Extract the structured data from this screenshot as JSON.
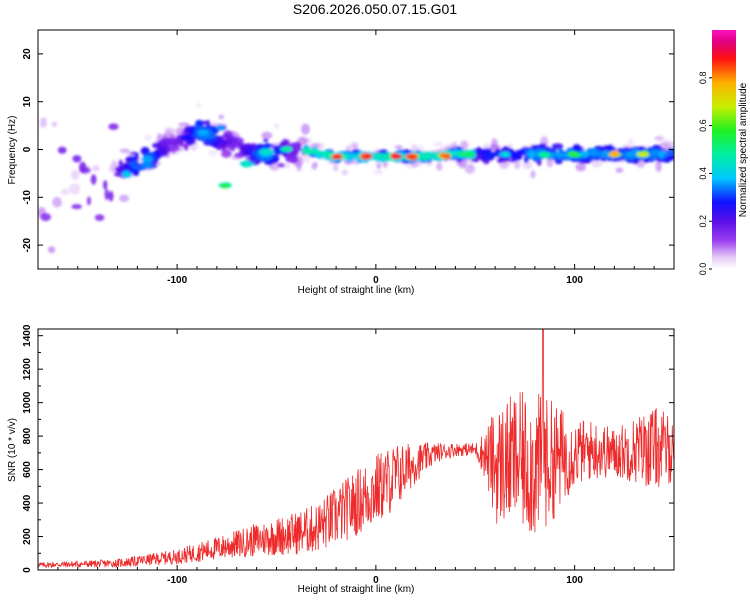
{
  "page_title": "S206.2026.050.07.15.G01",
  "colors": {
    "snr_line": "#ee2a2a",
    "colormap": [
      "#ffffff",
      "#e4c8f6",
      "#9a3df0",
      "#5a10e8",
      "#1010ff",
      "#00c8ff",
      "#00f0a0",
      "#20f020",
      "#c8f000",
      "#ffb000",
      "#ff1010",
      "#e00080",
      "#ff10c0"
    ]
  },
  "chart_data": [
    {
      "type": "heatmap",
      "title": "",
      "xlabel": "Height of straight line (km)",
      "ylabel": "Frequency (Hz)",
      "xlim": [
        -170,
        150
      ],
      "ylim": [
        -25,
        25
      ],
      "xticks": [
        -100,
        0,
        100
      ],
      "xtick_labels": [
        "-100",
        "0",
        "100"
      ],
      "yticks": [
        -20,
        -10,
        0,
        10,
        20
      ],
      "ytick_labels": [
        "-20",
        "-10",
        "0",
        "10",
        "20"
      ],
      "colorbar": {
        "label": "Normalized spectral amplitude",
        "range": [
          0.0,
          1.0
        ],
        "ticks": [
          0.0,
          0.2,
          0.4,
          0.6,
          0.8
        ],
        "tick_labels": [
          "0.0",
          "0.2",
          "0.4",
          "0.6",
          "0.8"
        ]
      },
      "ridge": [
        {
          "x": -130,
          "f": -4.0
        },
        {
          "x": -120,
          "f": -3.0
        },
        {
          "x": -110,
          "f": -1.0
        },
        {
          "x": -100,
          "f": 2.0
        },
        {
          "x": -90,
          "f": 4.0
        },
        {
          "x": -80,
          "f": 2.5
        },
        {
          "x": -70,
          "f": 1.0
        },
        {
          "x": -60,
          "f": -1.0
        },
        {
          "x": -50,
          "f": -0.5
        },
        {
          "x": -40,
          "f": 0.0
        },
        {
          "x": -30,
          "f": -0.5
        },
        {
          "x": -20,
          "f": -1.5
        },
        {
          "x": 0,
          "f": -1.5
        },
        {
          "x": 20,
          "f": -1.5
        },
        {
          "x": 40,
          "f": -1.0
        },
        {
          "x": 60,
          "f": -1.0
        },
        {
          "x": 80,
          "f": -1.0
        },
        {
          "x": 100,
          "f": -1.0
        },
        {
          "x": 120,
          "f": -1.0
        },
        {
          "x": 140,
          "f": -1.0
        },
        {
          "x": 150,
          "f": -1.0
        }
      ],
      "peaks": [
        {
          "x": -20,
          "f": -1.5,
          "amp": 0.95
        },
        {
          "x": -5,
          "f": -1.5,
          "amp": 0.9
        },
        {
          "x": 10,
          "f": -1.5,
          "amp": 0.95
        },
        {
          "x": 18,
          "f": -1.5,
          "amp": 0.9
        },
        {
          "x": 35,
          "f": -1.5,
          "amp": 0.85
        },
        {
          "x": 120,
          "f": -1.0,
          "amp": 0.8
        },
        {
          "x": 135,
          "f": -1.0,
          "amp": 0.75
        },
        {
          "x": -75,
          "f": -7.5,
          "amp": 0.55
        },
        {
          "x": -65,
          "f": -3.0,
          "amp": 0.45
        },
        {
          "x": -55,
          "f": -0.5,
          "amp": 0.45
        },
        {
          "x": -45,
          "f": 0.0,
          "amp": 0.5
        },
        {
          "x": -78,
          "f": 4.5,
          "amp": 0.35
        },
        {
          "x": -95,
          "f": 2.5,
          "amp": 0.3
        },
        {
          "x": -115,
          "f": -3.5,
          "amp": 0.35
        },
        {
          "x": -125,
          "f": -5.0,
          "amp": 0.4
        },
        {
          "x": 85,
          "f": -1.0,
          "amp": 0.5
        },
        {
          "x": 100,
          "f": -1.0,
          "amp": 0.6
        },
        {
          "x": 65,
          "f": -1.0,
          "amp": 0.45
        },
        {
          "x": 45,
          "f": -1.0,
          "amp": 0.55
        }
      ]
    },
    {
      "type": "line",
      "title": "",
      "xlabel": "Height of straight line (km)",
      "ylabel": "SNR (10 * v/v)",
      "xlim": [
        -170,
        150
      ],
      "ylim": [
        0,
        1440
      ],
      "xticks": [
        -100,
        0,
        100
      ],
      "xtick_labels": [
        "-100",
        "0",
        "100"
      ],
      "yticks": [
        0,
        200,
        400,
        600,
        800,
        1000,
        1200,
        1400
      ],
      "ytick_labels": [
        "0",
        "200",
        "400",
        "600",
        "800",
        "1000",
        "1200",
        "1400"
      ],
      "series": [
        {
          "name": "SNR",
          "envelope_x": [
            -170,
            -130,
            -100,
            -80,
            -60,
            -40,
            -30,
            -20,
            -10,
            0,
            10,
            20,
            30,
            40,
            50,
            55,
            60,
            70,
            80,
            90,
            100,
            110,
            120,
            130,
            140,
            150
          ],
          "envelope_mean": [
            30,
            40,
            80,
            130,
            180,
            220,
            250,
            320,
            400,
            480,
            560,
            640,
            700,
            720,
            720,
            690,
            620,
            660,
            620,
            660,
            700,
            720,
            700,
            720,
            730,
            720
          ],
          "envelope_amp": [
            15,
            25,
            45,
            70,
            100,
            130,
            150,
            180,
            200,
            220,
            200,
            120,
            60,
            40,
            40,
            150,
            350,
            400,
            450,
            350,
            200,
            180,
            150,
            200,
            250,
            200
          ],
          "max_peak": {
            "x": 84,
            "y": 1440
          }
        }
      ]
    }
  ]
}
